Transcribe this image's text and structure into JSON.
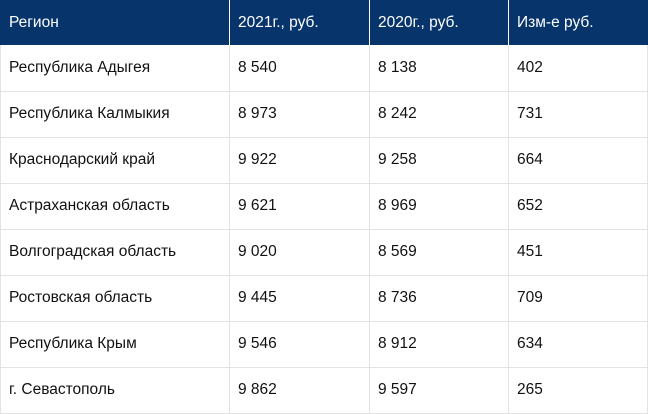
{
  "table": {
    "headers": [
      "Регион",
      "2021г., руб.",
      "2020г., руб.",
      "Изм-е руб."
    ],
    "rows": [
      [
        "Республика Адыгея",
        "8 540",
        "8 138",
        "402"
      ],
      [
        "Республика Калмыкия",
        "8 973",
        "8 242",
        "731"
      ],
      [
        "Краснодарский край",
        "9 922",
        "9 258",
        "664"
      ],
      [
        "Астраханская область",
        "9 621",
        "8 969",
        "652"
      ],
      [
        "Волгоградская область",
        "9 020",
        "8 569",
        "451"
      ],
      [
        "Ростовская область",
        "9 445",
        "8 736",
        "709"
      ],
      [
        "Республика Крым",
        "9 546",
        "8 912",
        "634"
      ],
      [
        "г. Севастополь",
        "9 862",
        "9 597",
        "265"
      ]
    ]
  },
  "colors": {
    "header_bg": "#07346b",
    "header_text": "#ffffff",
    "grid": "#e3e3e3"
  }
}
